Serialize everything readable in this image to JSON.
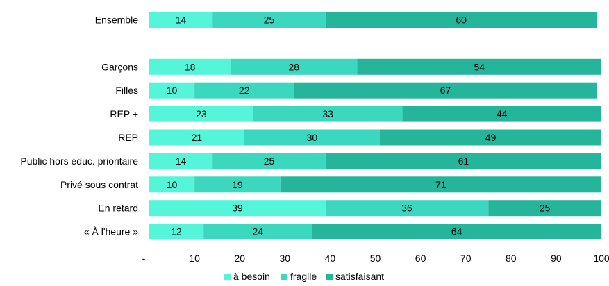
{
  "chart_data": {
    "type": "bar",
    "orientation": "horizontal",
    "stacked": true,
    "categories": [
      "Ensemble",
      "",
      "Garçons",
      "Filles",
      "REP +",
      "REP",
      "Public hors éduc. prioritaire",
      "Privé sous contrat",
      "En retard",
      "« À l'heure »"
    ],
    "series": [
      {
        "name": "à besoin",
        "color": "#55F5DA",
        "values": [
          14,
          null,
          18,
          10,
          23,
          21,
          14,
          10,
          39,
          12
        ]
      },
      {
        "name": "fragile",
        "color": "#3BD7BF",
        "values": [
          25,
          null,
          28,
          22,
          33,
          30,
          25,
          19,
          36,
          24
        ]
      },
      {
        "name": "satisfaisant",
        "color": "#25B59B",
        "values": [
          60,
          null,
          54,
          67,
          44,
          49,
          61,
          71,
          25,
          64
        ]
      }
    ],
    "xlim": [
      0,
      100
    ],
    "xticks": [
      "-",
      "10",
      "20",
      "30",
      "40",
      "50",
      "60",
      "70",
      "80",
      "90",
      "100"
    ],
    "grid": false,
    "legend_position": "bottom"
  }
}
